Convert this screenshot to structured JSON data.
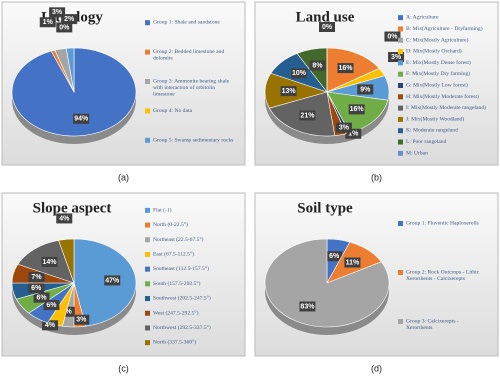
{
  "chart_data": [
    {
      "type": "pie",
      "title": "Lithology",
      "caption": "(a)",
      "categories": [
        "Group 1: Shale and sandstone",
        "Group 2: Bedded limestone and dolomite",
        "Group 3: Ammonite bearing shale with interaction of orbitolin limestone",
        "Group 4: No data",
        "Group 5: Swamp sedimentary rocks"
      ],
      "values": [
        94,
        1,
        3,
        0,
        2
      ],
      "value_labels": [
        "94%",
        "1%",
        "3%",
        "0%",
        "2%"
      ],
      "colors": [
        "#4472c4",
        "#ed7d31",
        "#a5a5a5",
        "#ffc000",
        "#5b9bd5"
      ]
    },
    {
      "type": "pie",
      "title": "Land use",
      "caption": "(b)",
      "categories": [
        "A: Agriculture",
        "B: Mix(Agriculture - Dryfarming)",
        "C: Mix(Mostly Agriculture)",
        "D: Mix(Mostly Orchard)",
        "E: Mix(Mostly Dense forest)",
        "F: Mix(Mostly Dry farming)",
        "G: Mix(Mostly Low forest)",
        "H: Mix(Mostly Moderate forest)",
        "I: Mix(Mostly Moderate rangeland)",
        "J: Mix(Mostly Woodland)",
        "K: Moderate rangeland",
        "L: Poor rangeland",
        "M: Urban"
      ],
      "values": [
        0,
        16,
        0,
        3,
        9,
        16,
        1,
        3,
        21,
        13,
        10,
        8,
        0
      ],
      "value_labels": [
        "0%",
        "16%",
        "0%",
        "3%",
        "9%",
        "16%",
        "1%",
        "3%",
        "21%",
        "13%",
        "10%",
        "8%",
        "0%"
      ],
      "colors": [
        "#4472c4",
        "#ed7d31",
        "#a5a5a5",
        "#ffc000",
        "#5b9bd5",
        "#70ad47",
        "#264478",
        "#9e480e",
        "#636363",
        "#997300",
        "#255e91",
        "#43682b",
        "#698ed0"
      ]
    },
    {
      "type": "pie",
      "title": "Slope aspect",
      "caption": "(c)",
      "categories": [
        "Flat (-1)",
        "North (0-22.5°)",
        "Northeast (22.5-67.5°)",
        "East (67.5-112.5°)",
        "Southeast (112.5-157.5°)",
        "South (157.5-202.5°)",
        "Southwest (202.5-247.5°)",
        "West (247.5-292.5°)",
        "Northwest (292.5-337.5°)",
        "North (337.5-360°)"
      ],
      "values": [
        47,
        3,
        3,
        4,
        6,
        6,
        6,
        7,
        14,
        4
      ],
      "value_labels": [
        "47%",
        "3%",
        "3%",
        "4%",
        "6%",
        "6%",
        "6%",
        "7%",
        "14%",
        "4%"
      ],
      "colors": [
        "#5b9bd5",
        "#ed7d31",
        "#a5a5a5",
        "#ffc000",
        "#4472c4",
        "#70ad47",
        "#255e91",
        "#9e480e",
        "#636363",
        "#997300"
      ]
    },
    {
      "type": "pie",
      "title": "Soil type",
      "caption": "(d)",
      "categories": [
        "Group 1: Fluventic Haploxerolls",
        "Group 2: Rock Outcrops - Lithic Xerorthents - Calcixerepts",
        "Group 3: Calcixerepts - Xerorthents"
      ],
      "values": [
        6,
        11,
        83
      ],
      "value_labels": [
        "6%",
        "11%",
        "83%"
      ],
      "colors": [
        "#4472c4",
        "#ed7d31",
        "#a5a5a5"
      ]
    }
  ]
}
